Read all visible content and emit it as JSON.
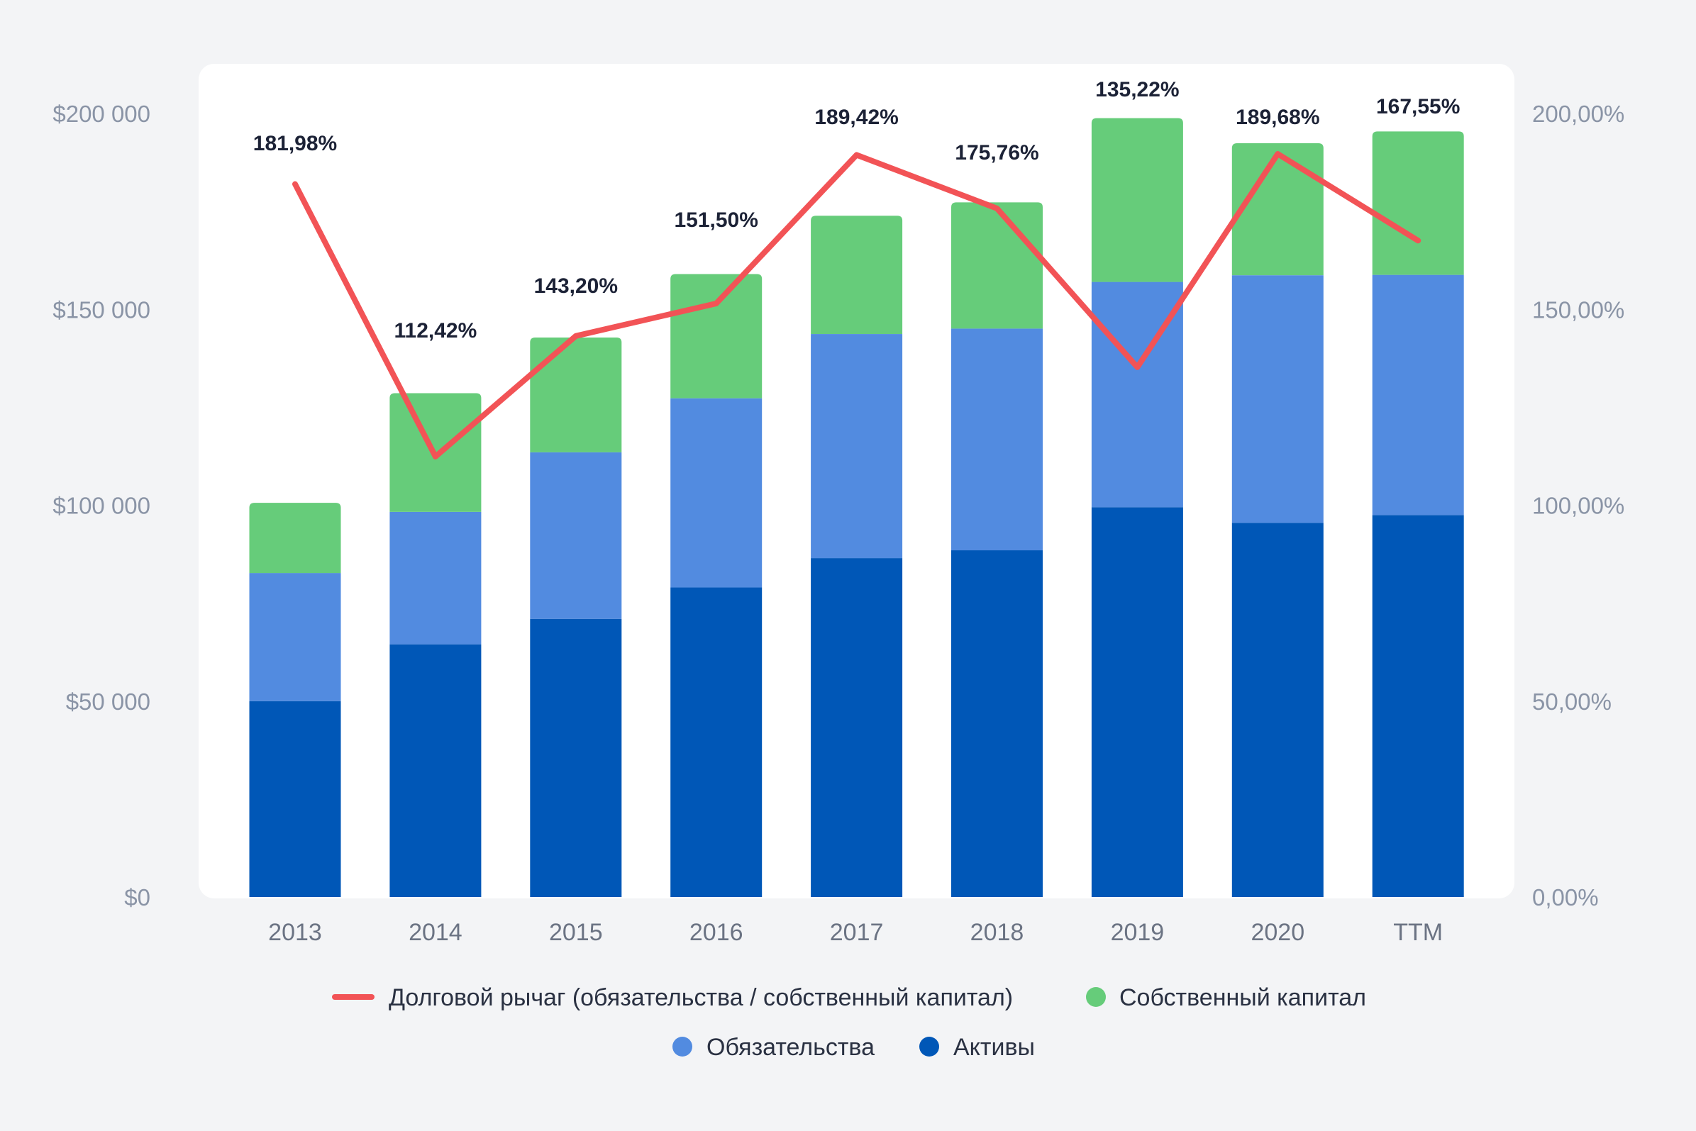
{
  "chart_data": {
    "type": "bar",
    "stacked": true,
    "categories": [
      "2013",
      "2014",
      "2015",
      "2016",
      "2017",
      "2018",
      "2019",
      "2020",
      "TTM"
    ],
    "series": [
      {
        "name": "Активы",
        "color": "#0057b7",
        "values": [
          50000,
          64500,
          71000,
          79000,
          86500,
          88500,
          99500,
          95500,
          97500
        ]
      },
      {
        "name": "Обязательства",
        "color": "#528be0",
        "values": [
          32700,
          33800,
          42500,
          48300,
          57200,
          56600,
          57500,
          63200,
          61300
        ]
      },
      {
        "name": "Собственный капитал",
        "color": "#66cc7a",
        "values": [
          17900,
          30300,
          29300,
          31700,
          30200,
          32200,
          41800,
          33700,
          36600
        ]
      },
      {
        "name": "Долговой рычаг (обязательства / собственный капитал)",
        "color": "#f25356",
        "type": "line",
        "axis": "right",
        "values": [
          181.98,
          112.42,
          143.2,
          151.5,
          189.42,
          175.76,
          135.22,
          189.68,
          167.55
        ]
      }
    ],
    "line_labels": [
      "181,98%",
      "112,42%",
      "143,20%",
      "151,50%",
      "189,42%",
      "175,76%",
      "135,22%",
      "189,68%",
      "167,55%"
    ],
    "y_left": {
      "ticks": [
        "$0",
        "$50 000",
        "$100 000",
        "$150 000",
        "$200 000"
      ],
      "ylim": [
        0,
        200000
      ]
    },
    "y_right": {
      "ticks": [
        "0,00%",
        "50,00%",
        "100,00%",
        "150,00%",
        "200,00%"
      ],
      "ylim": [
        0,
        200
      ]
    },
    "legend": [
      {
        "label": "Долговой рычаг (обязательства / собственный капитал)",
        "marker": "line",
        "color": "#f25356"
      },
      {
        "label": "Собственный капитал",
        "marker": "dot",
        "color": "#66cc7a"
      },
      {
        "label": "Обязательства",
        "marker": "dot",
        "color": "#528be0"
      },
      {
        "label": "Активы",
        "marker": "dot",
        "color": "#0057b7"
      }
    ],
    "legend_position": "bottom",
    "grid": false
  }
}
